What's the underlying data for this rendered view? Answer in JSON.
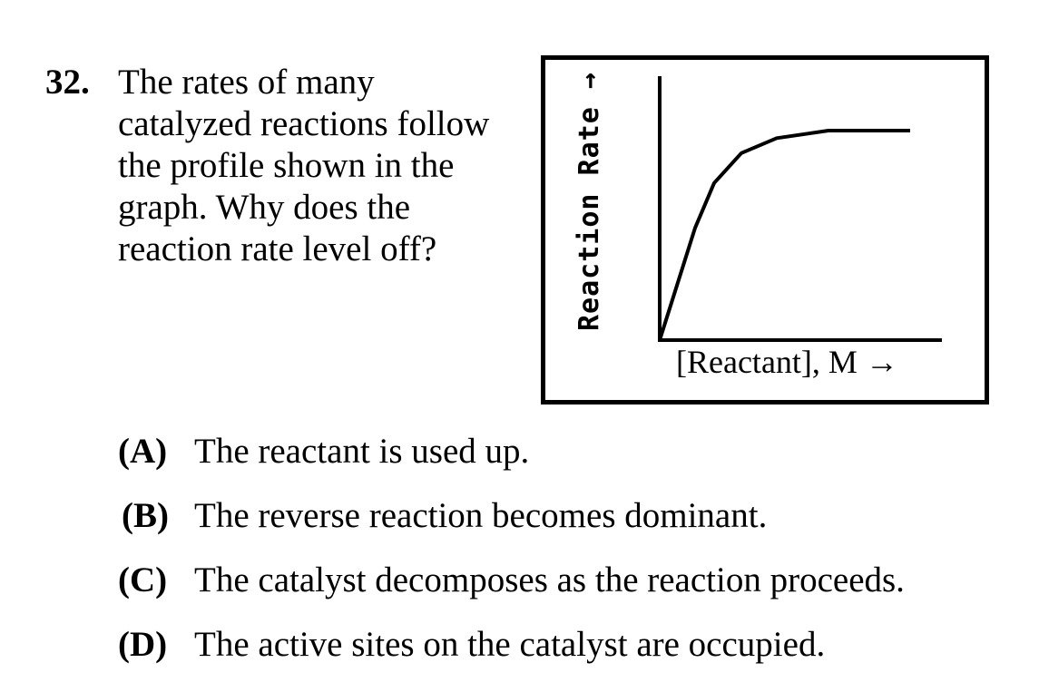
{
  "question": {
    "number": "32.",
    "lines": [
      "The rates of many",
      "catalyzed reactions follow",
      "the profile shown in the",
      "graph. Why does the",
      "reaction rate level off?"
    ]
  },
  "chart_data": {
    "type": "line",
    "title": "",
    "xlabel": "[Reactant], M →",
    "ylabel": "Reaction Rate →",
    "x_ticks": [],
    "y_ticks": [],
    "xlim": [
      0,
      10
    ],
    "ylim": [
      0,
      10
    ],
    "grid": false,
    "series": [
      {
        "x": [
          0,
          1.3,
          2.0,
          3.0,
          4.3,
          6.2,
          9.2
        ],
        "y": [
          0,
          4.5,
          6.3,
          7.5,
          8.1,
          8.4,
          8.4
        ]
      }
    ]
  },
  "choices": [
    {
      "letter": "(A)",
      "text": "The reactant is used up."
    },
    {
      "letter": "(B)",
      "text": "The reverse reaction becomes dominant."
    },
    {
      "letter": "(C)",
      "text": "The catalyst decomposes as the reaction proceeds."
    },
    {
      "letter": "(D)",
      "text": "The active sites on the catalyst are occupied."
    }
  ]
}
